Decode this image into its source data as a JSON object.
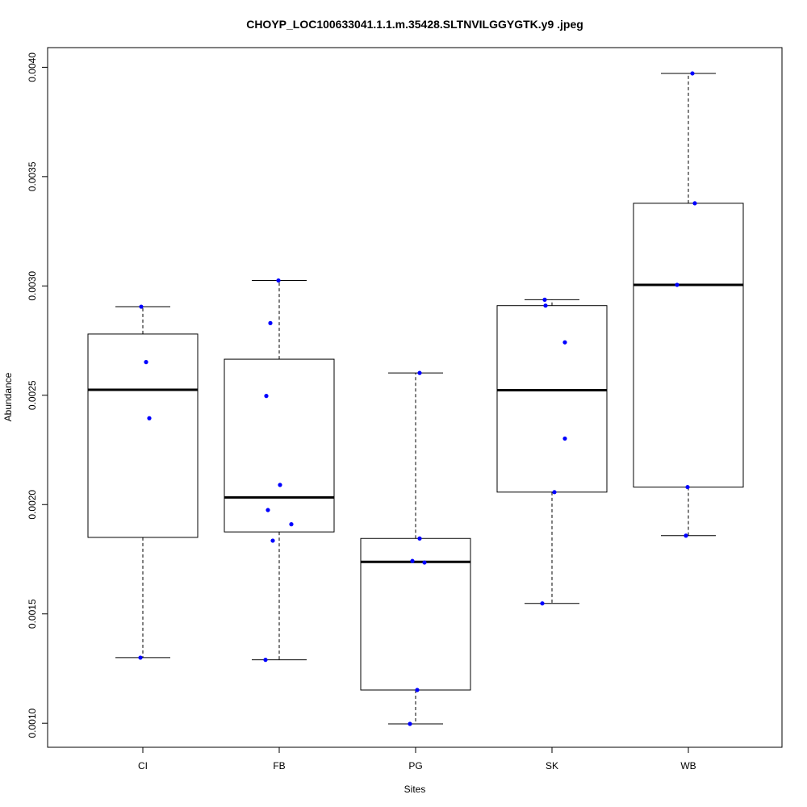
{
  "chart_data": {
    "type": "box",
    "title": "CHOYP_LOC100633041.1.1.m.35428.SLTNVILGGYGTK.y9 .jpeg",
    "xlabel": "Sites",
    "ylabel": "Abundance",
    "ylim": [
      0.00089,
      0.00409
    ],
    "yticks": [
      "0.0010",
      "0.0015",
      "0.0020",
      "0.0025",
      "0.0030",
      "0.0035",
      "0.0040"
    ],
    "ytick_values": [
      0.001,
      0.0015,
      0.002,
      0.0025,
      0.003,
      0.0035,
      0.004
    ],
    "categories": [
      "CI",
      "FB",
      "PG",
      "SK",
      "WB"
    ],
    "point_color": "#0000ff",
    "boxes": [
      {
        "category": "CI",
        "whisker_low": 0.0013,
        "q1": 0.00185,
        "median": 0.002525,
        "q3": 0.00278,
        "whisker_high": 0.002905,
        "points": [
          0.002905,
          0.002652,
          0.002395,
          0.0013
        ]
      },
      {
        "category": "FB",
        "whisker_low": 0.00129,
        "q1": 0.001875,
        "median": 0.002033,
        "q3": 0.002665,
        "whisker_high": 0.003025,
        "points": [
          0.003025,
          0.00283,
          0.002497,
          0.00209,
          0.001975,
          0.00191,
          0.001835,
          0.00129
        ]
      },
      {
        "category": "PG",
        "whisker_low": 0.000997,
        "q1": 0.001152,
        "median": 0.001738,
        "q3": 0.001845,
        "whisker_high": 0.002602,
        "points": [
          0.002602,
          0.001845,
          0.001742,
          0.001735,
          0.001152,
          0.000997
        ]
      },
      {
        "category": "SK",
        "whisker_low": 0.001548,
        "q1": 0.002057,
        "median": 0.002523,
        "q3": 0.00291,
        "whisker_high": 0.002937,
        "points": [
          0.002937,
          0.00291,
          0.002742,
          0.002302,
          0.002057,
          0.001548
        ]
      },
      {
        "category": "WB",
        "whisker_low": 0.001858,
        "q1": 0.00208,
        "median": 0.003005,
        "q3": 0.003378,
        "whisker_high": 0.003972,
        "points": [
          0.003972,
          0.003378,
          0.003005,
          0.00208,
          0.001858
        ]
      }
    ]
  }
}
